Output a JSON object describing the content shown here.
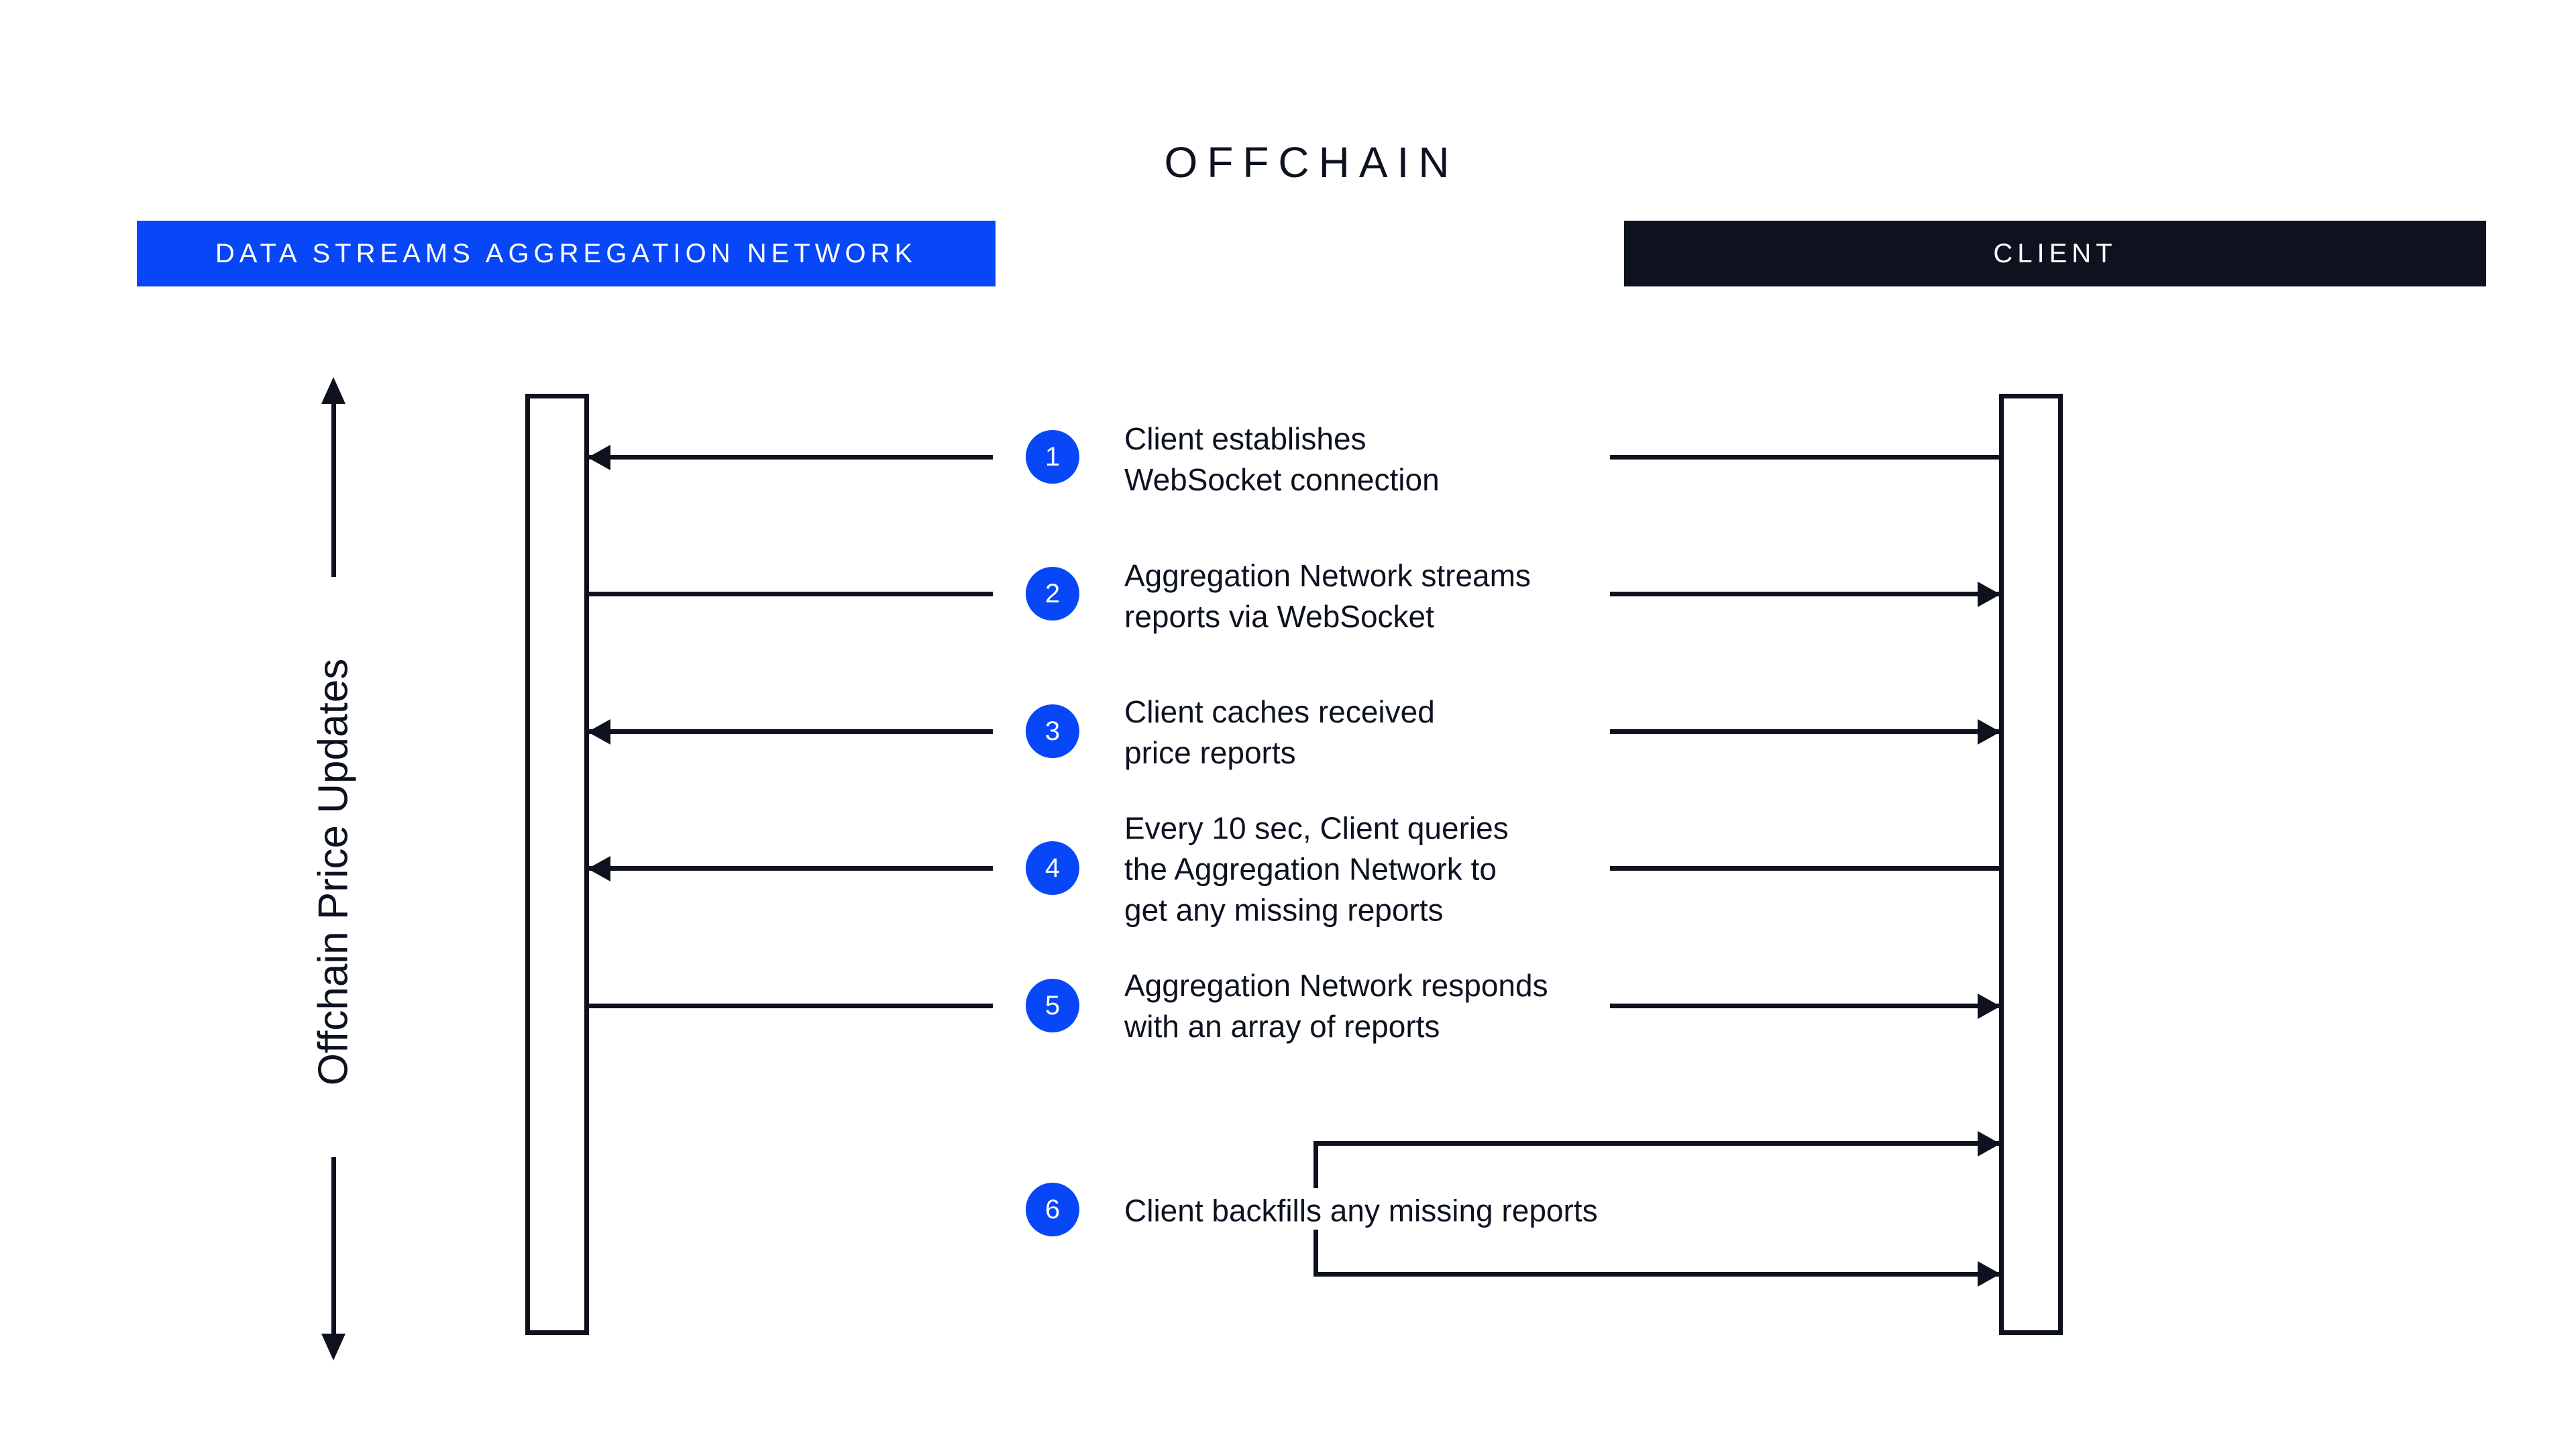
{
  "page": {
    "title": "OFFCHAIN"
  },
  "colors": {
    "accent_blue": "#0847F7",
    "ink_dark": "#0D121E",
    "background": "#FFFFFF",
    "header_text": "#FFFFFF"
  },
  "headers": {
    "aggregation_network": {
      "label": "DATA STREAMS AGGREGATION NETWORK",
      "bg": "#0847F7"
    },
    "client": {
      "label": "CLIENT",
      "bg": "#0D121E"
    }
  },
  "side_axis": {
    "label": "Offchain Price Updates",
    "arrow_up": true,
    "arrow_down": true
  },
  "steps": [
    {
      "num": "1",
      "text": "Client establishes\nWebSocket connection",
      "from": "client",
      "to": "aggregation_network",
      "left_end": "arrow-into-aggregation-bar",
      "right_end": "plain"
    },
    {
      "num": "2",
      "text": "Aggregation Network streams\nreports via WebSocket",
      "from": "aggregation_network",
      "to": "client",
      "left_end": "plain",
      "right_end": "arrow-into-client-bar"
    },
    {
      "num": "3",
      "text": "Client caches received\nprice reports",
      "from": "client",
      "to": "both",
      "left_end": "arrow-into-aggregation-bar",
      "right_end": "arrow-into-client-bar"
    },
    {
      "num": "4",
      "text": "Every 10 sec, Client queries\nthe Aggregation Network to\nget any missing reports",
      "from": "client",
      "to": "aggregation_network",
      "left_end": "arrow-into-aggregation-bar",
      "right_end": "plain"
    },
    {
      "num": "5",
      "text": "Aggregation Network responds\nwith an array of reports",
      "from": "aggregation_network",
      "to": "client",
      "left_end": "plain",
      "right_end": "arrow-into-client-bar"
    },
    {
      "num": "6",
      "text": "Client backfills any missing reports",
      "from": "client",
      "to": "client",
      "self_loop": "two bracket arrows into client bar"
    }
  ]
}
